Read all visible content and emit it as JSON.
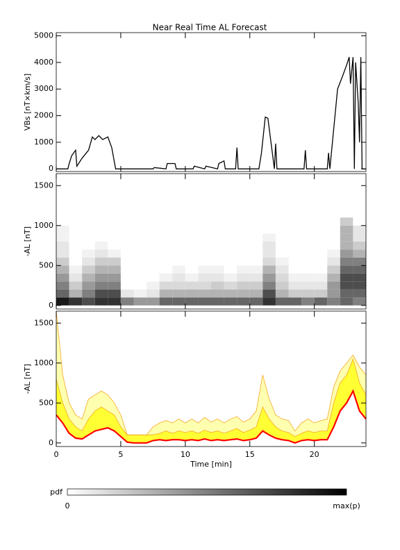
{
  "title": "Near Real Time AL Forecast",
  "chart_data": [
    {
      "type": "line",
      "ylabel": "VBs [nT×km/s]",
      "color": "#000000",
      "xlim": [
        0,
        24
      ],
      "ylim": [
        -100,
        5120
      ],
      "xticks": [
        0,
        5,
        10,
        15,
        20
      ],
      "yticks": [
        0,
        1000,
        2000,
        3000,
        4000,
        5000
      ],
      "x": [
        0,
        0.9,
        1,
        1.2,
        1.5,
        1.6,
        2,
        2.5,
        2.8,
        3,
        3.3,
        3.6,
        4,
        4.3,
        4.6,
        5,
        7.5,
        7.6,
        8.5,
        8.6,
        9.2,
        9.3,
        10.6,
        10.7,
        11.5,
        11.6,
        12.5,
        12.6,
        13,
        13.1,
        13.9,
        14,
        14.1,
        15.7,
        15.9,
        16.2,
        16.4,
        16.9,
        17,
        17.1,
        19.2,
        19.3,
        19.4,
        21,
        21.1,
        21.2,
        21.6,
        21.8,
        22.2,
        22.5,
        22.7,
        22.8,
        23,
        23.1,
        23.2,
        23.4,
        23.5,
        23.6,
        23.7,
        23.8,
        24
      ],
      "values": [
        0,
        0,
        200,
        500,
        700,
        100,
        400,
        700,
        1200,
        1100,
        1250,
        1100,
        1200,
        800,
        0,
        0,
        0,
        50,
        0,
        200,
        200,
        0,
        0,
        100,
        0,
        100,
        0,
        200,
        300,
        0,
        0,
        800,
        0,
        0,
        600,
        1950,
        1900,
        0,
        950,
        0,
        0,
        700,
        0,
        0,
        600,
        0,
        2000,
        3000,
        3500,
        3900,
        4200,
        3200,
        4200,
        0,
        4000,
        2500,
        1000,
        4200,
        0,
        0,
        0
      ]
    },
    {
      "type": "heatmap",
      "ylabel": "-AL [nT]",
      "xlim": [
        0,
        24
      ],
      "ylim": [
        -45,
        1650
      ],
      "xticks": [
        0,
        5,
        10,
        15,
        20
      ],
      "yticks": [
        0,
        500,
        1000,
        1500
      ],
      "x_bins": [
        0,
        1,
        2,
        3,
        4,
        5,
        6,
        7,
        8,
        9,
        10,
        11,
        12,
        13,
        14,
        15,
        16,
        17,
        18,
        19,
        20,
        21,
        22,
        23,
        24
      ],
      "y_bins": [
        0,
        100,
        200,
        300,
        400,
        500,
        600,
        700,
        800,
        900,
        1000,
        1100
      ],
      "z": [
        [
          0.9,
          0.8,
          0.7,
          0.8,
          0.8,
          0.5,
          0.4,
          0.4,
          0.6,
          0.6,
          0.6,
          0.6,
          0.6,
          0.6,
          0.6,
          0.6,
          0.8,
          0.6,
          0.6,
          0.5,
          0.6,
          0.5,
          0.6,
          0.5
        ],
        [
          0.6,
          0.3,
          0.5,
          0.7,
          0.7,
          0.1,
          0.05,
          0.1,
          0.3,
          0.3,
          0.3,
          0.3,
          0.3,
          0.3,
          0.3,
          0.3,
          0.7,
          0.3,
          0.2,
          0.2,
          0.2,
          0.4,
          0.6,
          0.6
        ],
        [
          0.5,
          0.2,
          0.4,
          0.5,
          0.5,
          0,
          0,
          0.05,
          0.15,
          0.15,
          0.15,
          0.15,
          0.2,
          0.15,
          0.2,
          0.2,
          0.5,
          0.2,
          0.1,
          0.1,
          0.1,
          0.4,
          0.7,
          0.7
        ],
        [
          0.4,
          0.1,
          0.3,
          0.4,
          0.4,
          0,
          0,
          0,
          0.05,
          0.1,
          0.05,
          0.1,
          0.1,
          0.05,
          0.1,
          0.1,
          0.4,
          0.15,
          0.05,
          0.05,
          0.05,
          0.3,
          0.7,
          0.7
        ],
        [
          0.3,
          0.05,
          0.2,
          0.3,
          0.3,
          0,
          0,
          0,
          0,
          0.05,
          0,
          0.05,
          0.05,
          0,
          0.05,
          0.05,
          0.3,
          0.1,
          0,
          0,
          0,
          0.2,
          0.6,
          0.6
        ],
        [
          0.2,
          0,
          0.1,
          0.2,
          0.2,
          0,
          0,
          0,
          0,
          0,
          0,
          0,
          0,
          0,
          0,
          0,
          0.15,
          0.05,
          0,
          0,
          0,
          0.1,
          0.5,
          0.5
        ],
        [
          0.1,
          0,
          0.05,
          0.1,
          0.05,
          0,
          0,
          0,
          0,
          0,
          0,
          0,
          0,
          0,
          0,
          0,
          0.1,
          0,
          0,
          0,
          0,
          0.05,
          0.4,
          0.3
        ],
        [
          0.1,
          0,
          0,
          0.05,
          0,
          0,
          0,
          0,
          0,
          0,
          0,
          0,
          0,
          0,
          0,
          0,
          0.1,
          0,
          0,
          0,
          0,
          0,
          0.3,
          0.2
        ],
        [
          0.05,
          0,
          0,
          0,
          0,
          0,
          0,
          0,
          0,
          0,
          0,
          0,
          0,
          0,
          0,
          0,
          0.05,
          0,
          0,
          0,
          0,
          0,
          0.3,
          0.1
        ],
        [
          0.05,
          0,
          0,
          0,
          0,
          0,
          0,
          0,
          0,
          0,
          0,
          0,
          0,
          0,
          0,
          0,
          0,
          0,
          0,
          0,
          0,
          0,
          0.3,
          0.1
        ],
        [
          0,
          0,
          0,
          0,
          0,
          0,
          0,
          0,
          0,
          0,
          0,
          0,
          0,
          0,
          0,
          0,
          0,
          0,
          0,
          0,
          0,
          0,
          0.2,
          0
        ]
      ]
    },
    {
      "type": "band",
      "ylabel": "-AL [nT]",
      "xlabel": "Time [min]",
      "xlim": [
        0,
        24
      ],
      "ylim": [
        -45,
        1650
      ],
      "xticks": [
        0,
        5,
        10,
        15,
        20
      ],
      "yticks": [
        0,
        500,
        1000,
        1500
      ],
      "x": [
        0,
        0.5,
        1,
        1.5,
        2,
        2.5,
        3,
        3.5,
        4,
        4.5,
        5,
        5.5,
        6,
        6.5,
        7,
        7.5,
        8,
        8.5,
        9,
        9.5,
        10,
        10.5,
        11,
        11.5,
        12,
        12.5,
        13,
        13.5,
        14,
        14.5,
        15,
        15.5,
        16,
        16.5,
        17,
        17.5,
        18,
        18.5,
        19,
        19.5,
        20,
        20.5,
        21,
        21.5,
        22,
        22.5,
        23,
        23.5,
        24
      ],
      "series": [
        {
          "color": "#ff0000",
          "values": [
            350,
            250,
            120,
            60,
            50,
            100,
            150,
            170,
            190,
            150,
            80,
            10,
            0,
            0,
            0,
            30,
            40,
            30,
            40,
            40,
            30,
            40,
            30,
            50,
            30,
            40,
            30,
            40,
            50,
            30,
            40,
            60,
            150,
            100,
            60,
            40,
            30,
            0,
            30,
            40,
            30,
            40,
            40,
            200,
            400,
            500,
            650,
            400,
            300
          ]
        },
        {
          "color": "#ffff33",
          "edge_color": "#f5a623",
          "values": [
            800,
            500,
            300,
            200,
            150,
            300,
            400,
            450,
            400,
            350,
            200,
            100,
            100,
            100,
            100,
            100,
            120,
            150,
            120,
            150,
            130,
            150,
            120,
            160,
            130,
            150,
            120,
            150,
            180,
            130,
            160,
            200,
            450,
            300,
            200,
            150,
            130,
            80,
            120,
            150,
            130,
            150,
            150,
            500,
            750,
            850,
            1050,
            750,
            600
          ]
        },
        {
          "color": "#ffffb0",
          "edge_color": "#f5a623",
          "values": [
            1650,
            850,
            500,
            350,
            300,
            550,
            600,
            650,
            600,
            500,
            350,
            100,
            100,
            100,
            100,
            200,
            250,
            280,
            250,
            300,
            250,
            300,
            250,
            320,
            260,
            300,
            250,
            300,
            330,
            260,
            300,
            400,
            850,
            550,
            350,
            300,
            280,
            150,
            250,
            300,
            250,
            280,
            300,
            700,
            900,
            1000,
            1100,
            950,
            850
          ]
        }
      ]
    }
  ],
  "colorbar": {
    "label": "pdf",
    "min_label": "0",
    "max_label": "max(p)"
  }
}
